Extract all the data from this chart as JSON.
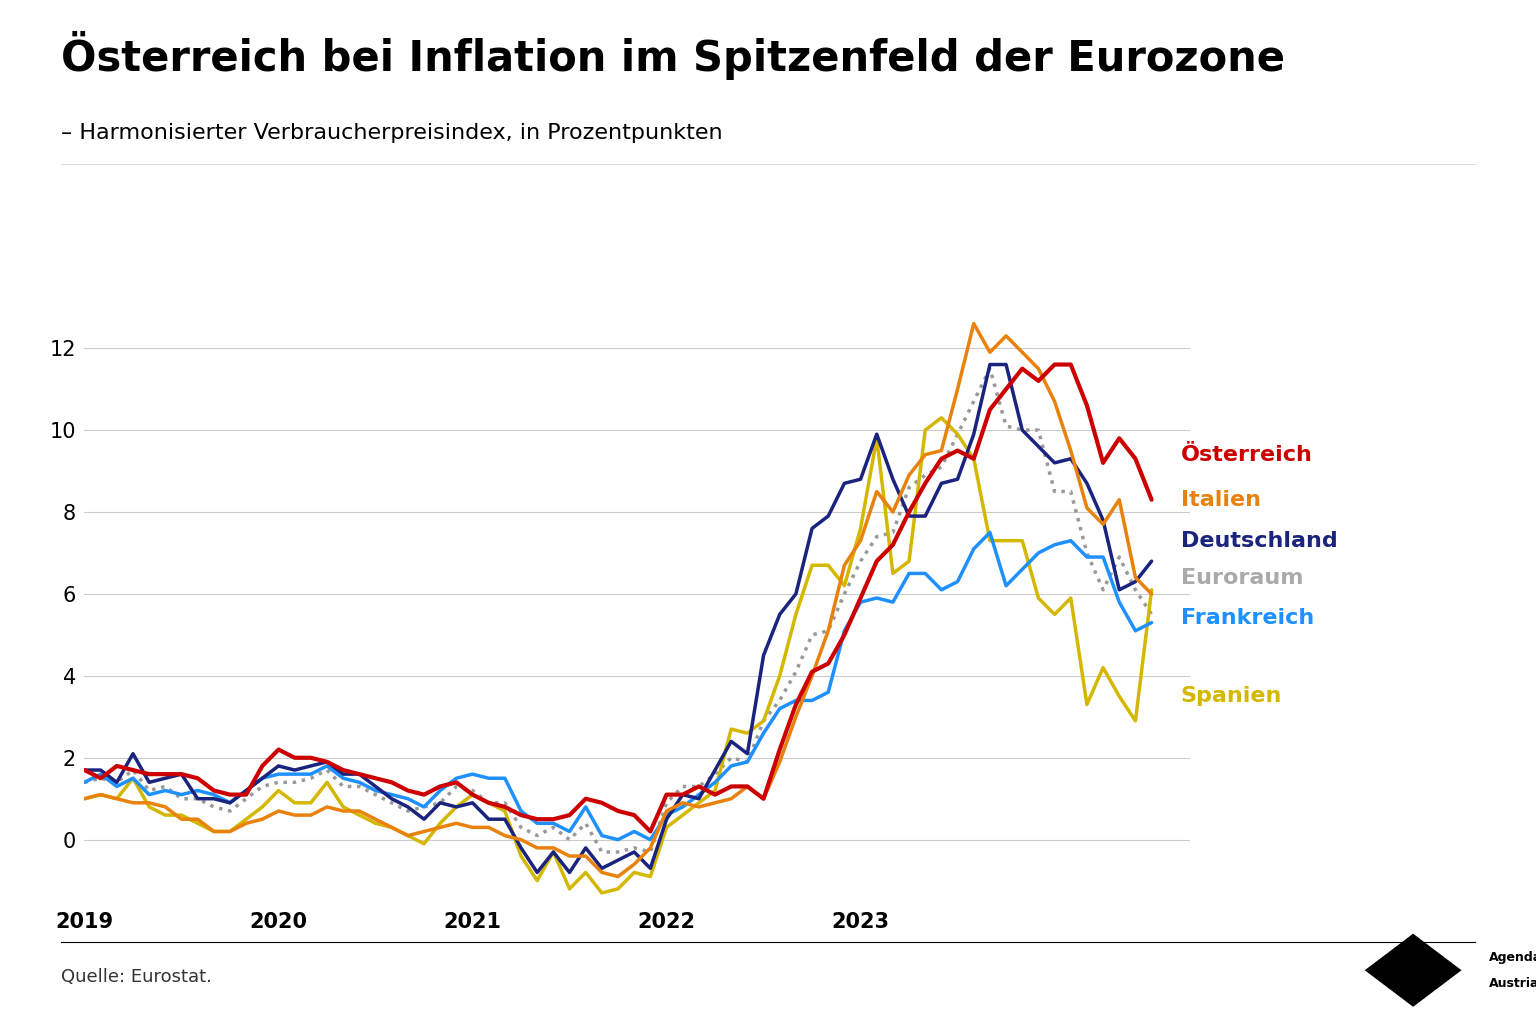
{
  "title": "Österreich bei Inflation im Spitzenfeld der Eurozone",
  "subtitle": "– Harmonisierter Verbraucherpreisindex, in Prozentpunkten",
  "source": "Quelle: Eurostat.",
  "ylim": [
    -1.5,
    13.5
  ],
  "yticks": [
    0,
    2,
    4,
    6,
    8,
    10,
    12
  ],
  "background_color": "#ffffff",
  "series": {
    "Österreich": {
      "color": "#cc0000",
      "linewidth": 3.0,
      "linestyle": "solid",
      "zorder": 5,
      "data": [
        1.7,
        1.5,
        1.8,
        1.7,
        1.6,
        1.6,
        1.6,
        1.5,
        1.2,
        1.1,
        1.1,
        1.8,
        2.2,
        2.0,
        2.0,
        1.9,
        1.7,
        1.6,
        1.5,
        1.4,
        1.2,
        1.1,
        1.3,
        1.4,
        1.1,
        0.9,
        0.8,
        0.6,
        0.5,
        0.5,
        0.6,
        1.0,
        0.9,
        0.7,
        0.6,
        0.2,
        1.1,
        1.1,
        1.3,
        1.1,
        1.3,
        1.3,
        1.0,
        2.2,
        3.3,
        4.1,
        4.3,
        5.0,
        5.9,
        6.8,
        7.2,
        8.0,
        8.7,
        9.3,
        9.5,
        9.3,
        10.5,
        11.0,
        11.5,
        11.2,
        11.6,
        11.6,
        10.6,
        9.2,
        9.8,
        9.3,
        8.3
      ]
    },
    "Italien": {
      "color": "#e8820c",
      "linewidth": 2.5,
      "linestyle": "solid",
      "zorder": 4,
      "data": [
        1.0,
        1.1,
        1.0,
        0.9,
        0.9,
        0.8,
        0.5,
        0.5,
        0.2,
        0.2,
        0.4,
        0.5,
        0.7,
        0.6,
        0.6,
        0.8,
        0.7,
        0.7,
        0.5,
        0.3,
        0.1,
        0.2,
        0.3,
        0.4,
        0.3,
        0.3,
        0.1,
        0.0,
        -0.2,
        -0.2,
        -0.4,
        -0.4,
        -0.8,
        -0.9,
        -0.6,
        -0.2,
        0.7,
        0.9,
        0.8,
        0.9,
        1.0,
        1.3,
        1.0,
        1.9,
        3.0,
        4.0,
        5.1,
        6.7,
        7.3,
        8.5,
        8.0,
        8.9,
        9.4,
        9.5,
        11.0,
        12.6,
        11.9,
        12.3,
        11.9,
        11.5,
        10.7,
        9.5,
        8.1,
        7.7,
        8.3,
        6.4,
        6.0
      ]
    },
    "Deutschland": {
      "color": "#1a237e",
      "linewidth": 2.5,
      "linestyle": "solid",
      "zorder": 4,
      "data": [
        1.7,
        1.7,
        1.4,
        2.1,
        1.4,
        1.5,
        1.6,
        1.0,
        1.0,
        0.9,
        1.2,
        1.5,
        1.8,
        1.7,
        1.8,
        1.9,
        1.6,
        1.6,
        1.3,
        1.0,
        0.8,
        0.5,
        0.9,
        0.8,
        0.9,
        0.5,
        0.5,
        -0.2,
        -0.8,
        -0.3,
        -0.8,
        -0.2,
        -0.7,
        -0.5,
        -0.3,
        -0.7,
        0.5,
        1.1,
        1.0,
        1.7,
        2.4,
        2.1,
        4.5,
        5.5,
        6.0,
        7.6,
        7.9,
        8.7,
        8.8,
        9.9,
        8.8,
        7.9,
        7.9,
        8.7,
        8.8,
        9.9,
        11.6,
        11.6,
        10.0,
        9.6,
        9.2,
        9.3,
        8.7,
        7.8,
        6.1,
        6.3,
        6.8
      ]
    },
    "Euroraum": {
      "color": "#999999",
      "linewidth": 2.5,
      "linestyle": "dotted",
      "zorder": 3,
      "data": [
        1.4,
        1.5,
        1.4,
        1.7,
        1.2,
        1.3,
        1.0,
        1.0,
        0.8,
        0.7,
        1.0,
        1.3,
        1.4,
        1.4,
        1.5,
        1.7,
        1.3,
        1.3,
        1.1,
        0.9,
        0.7,
        0.8,
        0.9,
        1.3,
        1.2,
        0.9,
        0.9,
        0.3,
        0.1,
        0.3,
        0.0,
        0.4,
        -0.3,
        -0.3,
        -0.2,
        -0.3,
        0.9,
        1.3,
        1.3,
        1.6,
        2.0,
        1.9,
        2.9,
        3.4,
        4.1,
        5.0,
        5.1,
        6.0,
        6.8,
        7.4,
        7.5,
        8.6,
        8.9,
        9.1,
        9.9,
        10.7,
        11.5,
        10.1,
        10.0,
        10.0,
        8.5,
        8.5,
        7.0,
        6.1,
        6.9,
        6.1,
        5.5
      ]
    },
    "Frankreich": {
      "color": "#1e90ff",
      "linewidth": 2.5,
      "linestyle": "solid",
      "zorder": 4,
      "data": [
        1.4,
        1.6,
        1.3,
        1.5,
        1.1,
        1.2,
        1.1,
        1.2,
        1.1,
        0.9,
        1.2,
        1.5,
        1.6,
        1.6,
        1.6,
        1.8,
        1.5,
        1.4,
        1.2,
        1.1,
        1.0,
        0.8,
        1.2,
        1.5,
        1.6,
        1.5,
        1.5,
        0.7,
        0.4,
        0.4,
        0.2,
        0.8,
        0.1,
        0.0,
        0.2,
        0.0,
        0.6,
        0.8,
        1.1,
        1.4,
        1.8,
        1.9,
        2.6,
        3.2,
        3.4,
        3.4,
        3.6,
        5.1,
        5.8,
        5.9,
        5.8,
        6.5,
        6.5,
        6.1,
        6.3,
        7.1,
        7.5,
        6.2,
        6.6,
        7.0,
        7.2,
        7.3,
        6.9,
        6.9,
        5.8,
        5.1,
        5.3
      ]
    },
    "Spanien": {
      "color": "#d4b800",
      "linewidth": 2.5,
      "linestyle": "solid",
      "zorder": 4,
      "data": [
        1.0,
        1.1,
        1.0,
        1.5,
        0.8,
        0.6,
        0.6,
        0.4,
        0.2,
        0.2,
        0.5,
        0.8,
        1.2,
        0.9,
        0.9,
        1.4,
        0.8,
        0.6,
        0.4,
        0.3,
        0.1,
        -0.1,
        0.4,
        0.8,
        1.1,
        0.9,
        0.7,
        -0.4,
        -1.0,
        -0.3,
        -1.2,
        -0.8,
        -1.3,
        -1.2,
        -0.8,
        -0.9,
        0.3,
        0.6,
        0.9,
        1.2,
        2.7,
        2.6,
        2.9,
        4.0,
        5.5,
        6.7,
        6.7,
        6.2,
        7.6,
        9.8,
        6.5,
        6.8,
        10.0,
        10.3,
        9.9,
        9.3,
        7.3,
        7.3,
        7.3,
        5.9,
        5.5,
        5.9,
        3.3,
        4.2,
        3.5,
        2.9,
        6.1
      ]
    }
  },
  "start_year": 2019,
  "n_points": 67,
  "title_fontsize": 30,
  "subtitle_fontsize": 16,
  "label_fontsize": 16,
  "tick_fontsize": 15,
  "source_fontsize": 13,
  "label_y_positions": {
    "Österreich": 9.4,
    "Italien": 8.3,
    "Deutschland": 7.3,
    "Euroraum": 6.4,
    "Frankreich": 5.4,
    "Spanien": 3.5
  },
  "label_colors": {
    "Österreich": "#cc0000",
    "Italien": "#e8820c",
    "Deutschland": "#1a237e",
    "Euroraum": "#aaaaaa",
    "Frankreich": "#1e90ff",
    "Spanien": "#d4b800"
  }
}
